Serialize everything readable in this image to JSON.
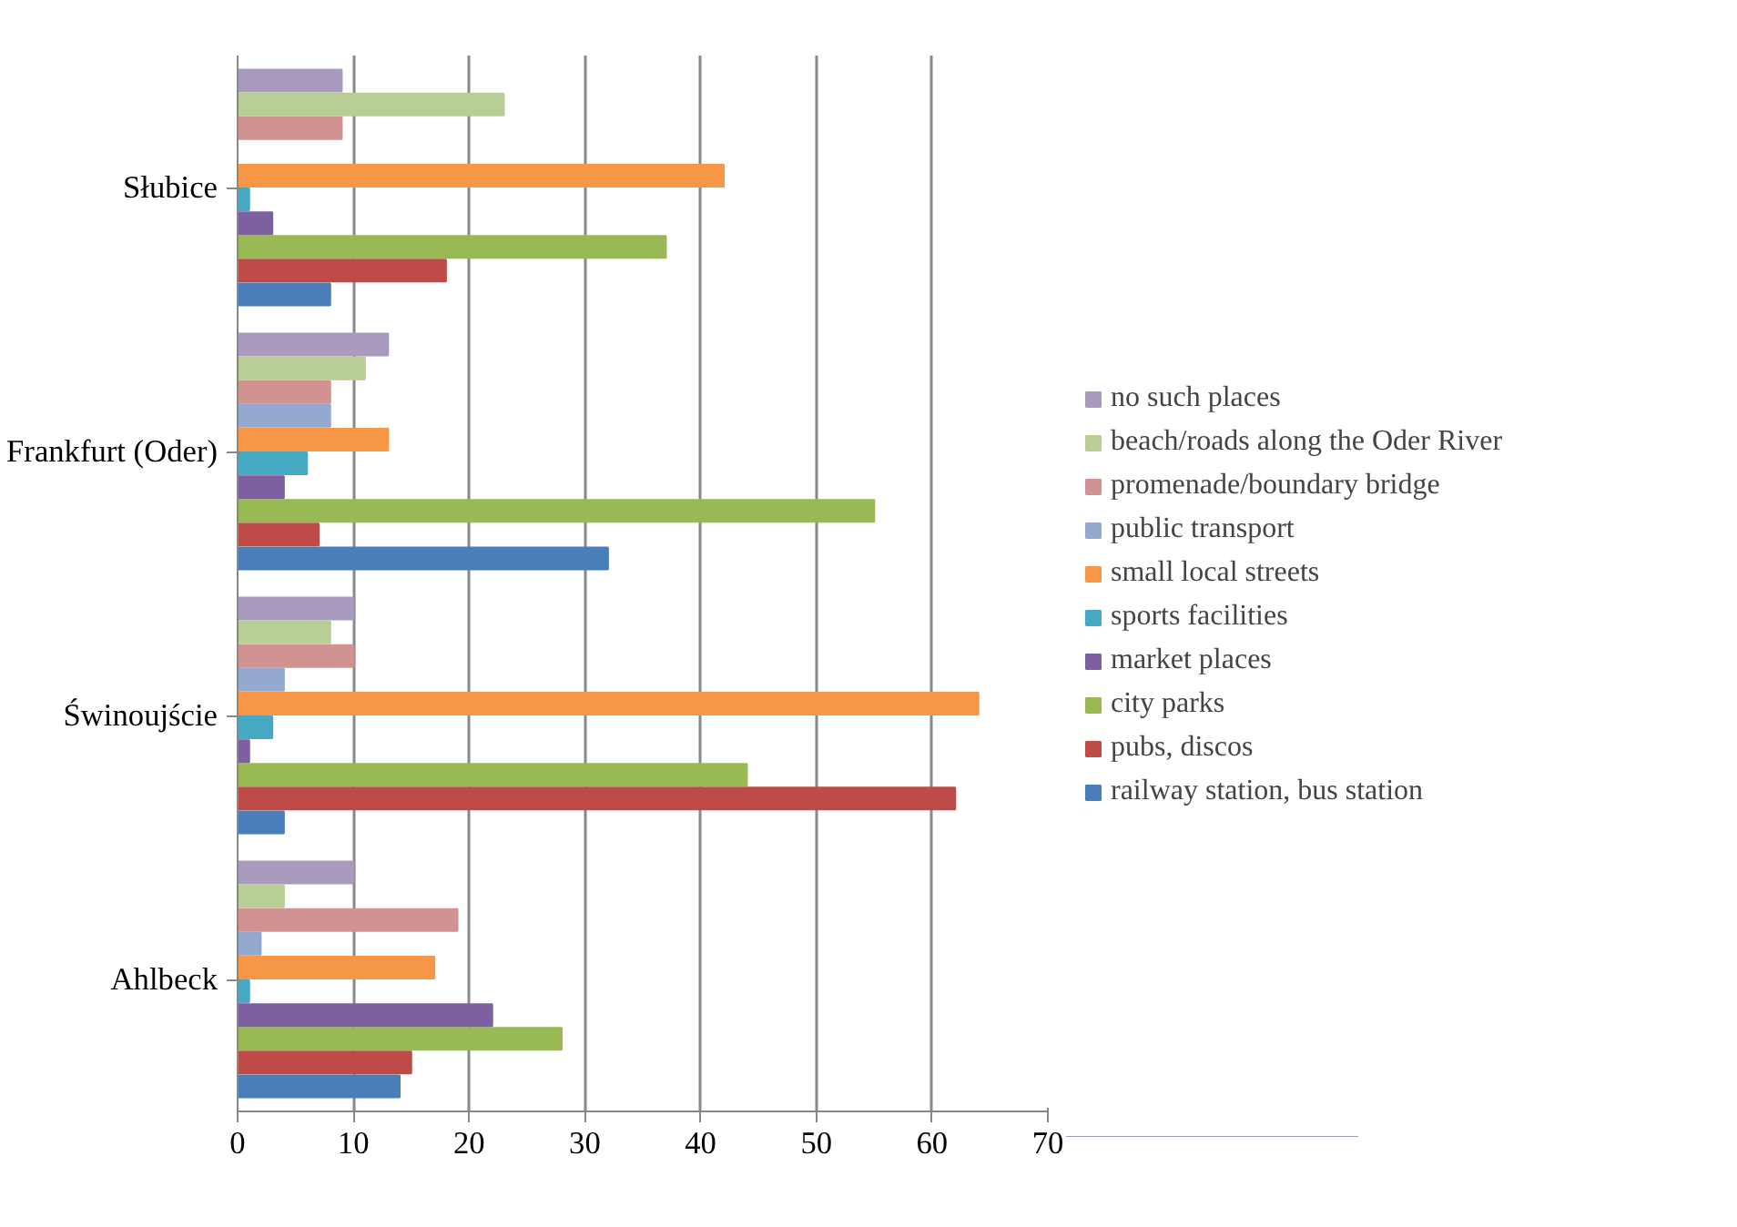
{
  "chart_data": {
    "type": "bar",
    "orientation": "horizontal",
    "categories": [
      "Słubice",
      "Frankfurt (Oder)",
      "Świnoujście",
      "Ahlbeck"
    ],
    "xlim": [
      0,
      70
    ],
    "xticks": [
      0,
      10,
      20,
      30,
      40,
      50,
      60,
      70
    ],
    "grid": "x",
    "legend": "right",
    "series": [
      {
        "name": "railway station, bus station",
        "color": "#4a7ebb",
        "values": [
          8,
          32,
          4,
          14
        ]
      },
      {
        "name": "pubs, discos",
        "color": "#be4b48",
        "values": [
          18,
          7,
          62,
          15
        ]
      },
      {
        "name": "city parks",
        "color": "#98b954",
        "values": [
          37,
          55,
          44,
          28
        ]
      },
      {
        "name": "market places",
        "color": "#7d60a0",
        "values": [
          3,
          4,
          1,
          22
        ]
      },
      {
        "name": "sports facilities",
        "color": "#46aac5",
        "values": [
          1,
          6,
          3,
          1
        ]
      },
      {
        "name": "small local streets",
        "color": "#f79646",
        "values": [
          42,
          13,
          64,
          17
        ]
      },
      {
        "name": "public transport",
        "color": "#93a9cf",
        "values": [
          0,
          8,
          4,
          2
        ]
      },
      {
        "name": "promenade/boundary bridge",
        "color": "#d19392",
        "values": [
          9,
          8,
          10,
          19
        ]
      },
      {
        "name": "beach/roads along the Oder River",
        "color": "#b9cd96",
        "values": [
          23,
          11,
          8,
          4
        ]
      },
      {
        "name": "no such places",
        "color": "#a99bbd",
        "values": [
          9,
          13,
          10,
          10
        ]
      }
    ]
  }
}
